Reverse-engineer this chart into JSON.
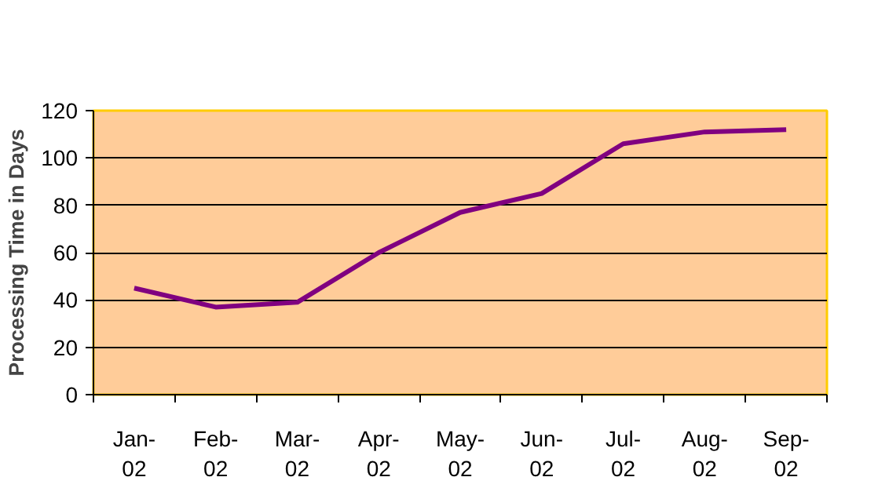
{
  "chart_data": {
    "type": "line",
    "ylabel": "Processing Time in Days",
    "categories": [
      "Jan-02",
      "Feb-02",
      "Mar-02",
      "Apr-02",
      "May-02",
      "Jun-02",
      "Jul-02",
      "Aug-02",
      "Sep-02"
    ],
    "series": [
      {
        "color": "#800080",
        "values": [
          45,
          37,
          39,
          60,
          77,
          85,
          106,
          111,
          112
        ]
      }
    ],
    "ylim": [
      0,
      120
    ],
    "yticks": [
      0,
      20,
      40,
      60,
      80,
      100,
      120
    ],
    "grid": "y"
  }
}
